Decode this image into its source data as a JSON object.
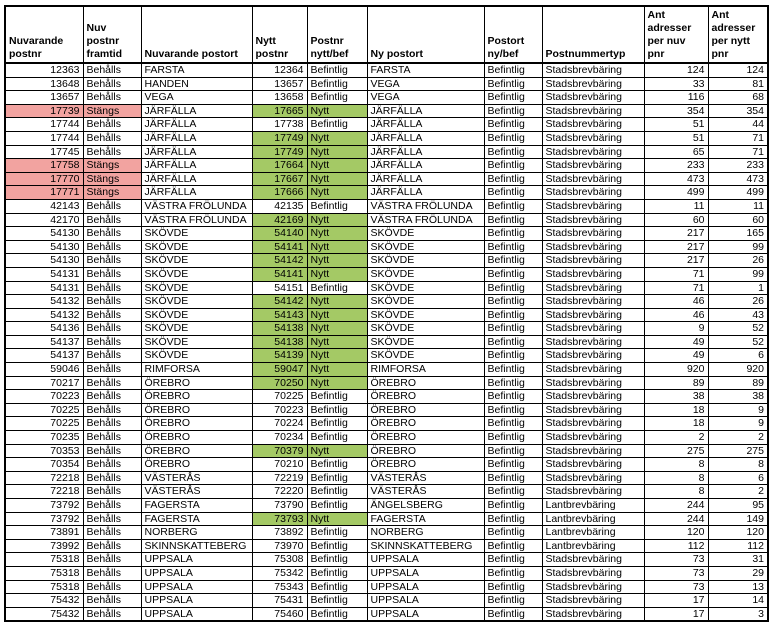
{
  "page": {
    "background": "#ffffff"
  },
  "table": {
    "columns": [
      {
        "key": "nuvarande-postnr",
        "label": "Nuvarande\npostnr",
        "align": "right"
      },
      {
        "key": "nuv-postnr-framtid",
        "label": "Nuv\npostnr\nframtid",
        "align": "left"
      },
      {
        "key": "nuvarande-postort",
        "label": "Nuvarande postort",
        "align": "left"
      },
      {
        "key": "nytt-postnr",
        "label": "Nytt\npostnr",
        "align": "right"
      },
      {
        "key": "postnr-nytt-bef",
        "label": "Postnr\nnytt/bef",
        "align": "left"
      },
      {
        "key": "ny-postort",
        "label": "Ny postort",
        "align": "left"
      },
      {
        "key": "postort-ny-bef",
        "label": "Postort\nny/bef",
        "align": "left"
      },
      {
        "key": "postnummertyp",
        "label": "Postnummertyp",
        "align": "left"
      },
      {
        "key": "ant-adresser-per-nuv-pnr",
        "label": "Ant\nadresser\nper nuv pnr",
        "align": "right"
      },
      {
        "key": "ant-adresser-per-nytt-pnr",
        "label": "Ant\nadresser\nper nytt pnr",
        "align": "right"
      }
    ],
    "rows": [
      [
        "12363",
        "Behålls",
        "FARSTA",
        "12364",
        "Befintlig",
        "FARSTA",
        "Befintlig",
        "Stadsbrevbäring",
        "124",
        "124"
      ],
      [
        "13648",
        "Behålls",
        "HANDEN",
        "13657",
        "Befintlig",
        "VEGA",
        "Befintlig",
        "Stadsbrevbäring",
        "33",
        "81"
      ],
      [
        "13657",
        "Behålls",
        "VEGA",
        "13658",
        "Befintlig",
        "VEGA",
        "Befintlig",
        "Stadsbrevbäring",
        "116",
        "68"
      ],
      [
        "17739",
        "Stängs",
        "JÄRFÄLLA",
        "17665",
        "Nytt",
        "JÄRFÄLLA",
        "Befintlig",
        "Stadsbrevbäring",
        "354",
        "354"
      ],
      [
        "17744",
        "Behålls",
        "JÄRFÄLLA",
        "17738",
        "Befintlig",
        "JÄRFÄLLA",
        "Befintlig",
        "Stadsbrevbäring",
        "51",
        "44"
      ],
      [
        "17744",
        "Behålls",
        "JÄRFÄLLA",
        "17749",
        "Nytt",
        "JÄRFÄLLA",
        "Befintlig",
        "Stadsbrevbäring",
        "51",
        "71"
      ],
      [
        "17745",
        "Behålls",
        "JÄRFÄLLA",
        "17749",
        "Nytt",
        "JÄRFÄLLA",
        "Befintlig",
        "Stadsbrevbäring",
        "65",
        "71"
      ],
      [
        "17758",
        "Stängs",
        "JÄRFÄLLA",
        "17664",
        "Nytt",
        "JÄRFÄLLA",
        "Befintlig",
        "Stadsbrevbäring",
        "233",
        "233"
      ],
      [
        "17770",
        "Stängs",
        "JÄRFÄLLA",
        "17667",
        "Nytt",
        "JÄRFÄLLA",
        "Befintlig",
        "Stadsbrevbäring",
        "473",
        "473"
      ],
      [
        "17771",
        "Stängs",
        "JÄRFÄLLA",
        "17666",
        "Nytt",
        "JÄRFÄLLA",
        "Befintlig",
        "Stadsbrevbäring",
        "499",
        "499"
      ],
      [
        "42143",
        "Behålls",
        "VÄSTRA FRÖLUNDA",
        "42135",
        "Befintlig",
        "VÄSTRA FRÖLUNDA",
        "Befintlig",
        "Stadsbrevbäring",
        "11",
        "11"
      ],
      [
        "42170",
        "Behålls",
        "VÄSTRA FRÖLUNDA",
        "42169",
        "Nytt",
        "VÄSTRA FRÖLUNDA",
        "Befintlig",
        "Stadsbrevbäring",
        "60",
        "60"
      ],
      [
        "54130",
        "Behålls",
        "SKÖVDE",
        "54140",
        "Nytt",
        "SKÖVDE",
        "Befintlig",
        "Stadsbrevbäring",
        "217",
        "165"
      ],
      [
        "54130",
        "Behålls",
        "SKÖVDE",
        "54141",
        "Nytt",
        "SKÖVDE",
        "Befintlig",
        "Stadsbrevbäring",
        "217",
        "99"
      ],
      [
        "54130",
        "Behålls",
        "SKÖVDE",
        "54142",
        "Nytt",
        "SKÖVDE",
        "Befintlig",
        "Stadsbrevbäring",
        "217",
        "26"
      ],
      [
        "54131",
        "Behålls",
        "SKÖVDE",
        "54141",
        "Nytt",
        "SKÖVDE",
        "Befintlig",
        "Stadsbrevbäring",
        "71",
        "99"
      ],
      [
        "54131",
        "Behålls",
        "SKÖVDE",
        "54151",
        "Befintlig",
        "SKÖVDE",
        "Befintlig",
        "Stadsbrevbäring",
        "71",
        "1"
      ],
      [
        "54132",
        "Behålls",
        "SKÖVDE",
        "54142",
        "Nytt",
        "SKÖVDE",
        "Befintlig",
        "Stadsbrevbäring",
        "46",
        "26"
      ],
      [
        "54132",
        "Behålls",
        "SKÖVDE",
        "54143",
        "Nytt",
        "SKÖVDE",
        "Befintlig",
        "Stadsbrevbäring",
        "46",
        "43"
      ],
      [
        "54136",
        "Behålls",
        "SKÖVDE",
        "54138",
        "Nytt",
        "SKÖVDE",
        "Befintlig",
        "Stadsbrevbäring",
        "9",
        "52"
      ],
      [
        "54137",
        "Behålls",
        "SKÖVDE",
        "54138",
        "Nytt",
        "SKÖVDE",
        "Befintlig",
        "Stadsbrevbäring",
        "49",
        "52"
      ],
      [
        "54137",
        "Behålls",
        "SKÖVDE",
        "54139",
        "Nytt",
        "SKÖVDE",
        "Befintlig",
        "Stadsbrevbäring",
        "49",
        "6"
      ],
      [
        "59046",
        "Behålls",
        "RIMFORSA",
        "59047",
        "Nytt",
        "RIMFORSA",
        "Befintlig",
        "Stadsbrevbäring",
        "920",
        "920"
      ],
      [
        "70217",
        "Behålls",
        "ÖREBRO",
        "70250",
        "Nytt",
        "ÖREBRO",
        "Befintlig",
        "Stadsbrevbäring",
        "89",
        "89"
      ],
      [
        "70223",
        "Behålls",
        "ÖREBRO",
        "70225",
        "Befintlig",
        "ÖREBRO",
        "Befintlig",
        "Stadsbrevbäring",
        "38",
        "38"
      ],
      [
        "70225",
        "Behålls",
        "ÖREBRO",
        "70223",
        "Befintlig",
        "ÖREBRO",
        "Befintlig",
        "Stadsbrevbäring",
        "18",
        "9"
      ],
      [
        "70225",
        "Behålls",
        "ÖREBRO",
        "70224",
        "Befintlig",
        "ÖREBRO",
        "Befintlig",
        "Stadsbrevbäring",
        "18",
        "9"
      ],
      [
        "70235",
        "Behålls",
        "ÖREBRO",
        "70234",
        "Befintlig",
        "ÖREBRO",
        "Befintlig",
        "Stadsbrevbäring",
        "2",
        "2"
      ],
      [
        "70353",
        "Behålls",
        "ÖREBRO",
        "70379",
        "Nytt",
        "ÖREBRO",
        "Befintlig",
        "Stadsbrevbäring",
        "275",
        "275"
      ],
      [
        "70354",
        "Behålls",
        "ÖREBRO",
        "70210",
        "Befintlig",
        "ÖREBRO",
        "Befintlig",
        "Stadsbrevbäring",
        "8",
        "8"
      ],
      [
        "72218",
        "Behålls",
        "VÄSTERÅS",
        "72219",
        "Befintlig",
        "VÄSTERÅS",
        "Befintlig",
        "Stadsbrevbäring",
        "8",
        "6"
      ],
      [
        "72218",
        "Behålls",
        "VÄSTERÅS",
        "72220",
        "Befintlig",
        "VÄSTERÅS",
        "Befintlig",
        "Stadsbrevbäring",
        "8",
        "2"
      ],
      [
        "73792",
        "Behålls",
        "FAGERSTA",
        "73790",
        "Befintlig",
        "ÄNGELSBERG",
        "Befintlig",
        "Lantbrevbäring",
        "244",
        "95"
      ],
      [
        "73792",
        "Behålls",
        "FAGERSTA",
        "73793",
        "Nytt",
        "FAGERSTA",
        "Befintlig",
        "Lantbrevbäring",
        "244",
        "149"
      ],
      [
        "73891",
        "Behålls",
        "NORBERG",
        "73892",
        "Befintlig",
        "NORBERG",
        "Befintlig",
        "Lantbrevbäring",
        "120",
        "120"
      ],
      [
        "73992",
        "Behålls",
        "SKINNSKATTEBERG",
        "73970",
        "Befintlig",
        "SKINNSKATTEBERG",
        "Befintlig",
        "Lantbrevbäring",
        "112",
        "112"
      ],
      [
        "75318",
        "Behålls",
        "UPPSALA",
        "75308",
        "Befintlig",
        "UPPSALA",
        "Befintlig",
        "Stadsbrevbäring",
        "73",
        "31"
      ],
      [
        "75318",
        "Behålls",
        "UPPSALA",
        "75342",
        "Befintlig",
        "UPPSALA",
        "Befintlig",
        "Stadsbrevbäring",
        "73",
        "29"
      ],
      [
        "75318",
        "Behålls",
        "UPPSALA",
        "75343",
        "Befintlig",
        "UPPSALA",
        "Befintlig",
        "Stadsbrevbäring",
        "73",
        "13"
      ],
      [
        "75432",
        "Behålls",
        "UPPSALA",
        "75431",
        "Befintlig",
        "UPPSALA",
        "Befintlig",
        "Stadsbrevbäring",
        "17",
        "14"
      ],
      [
        "75432",
        "Behålls",
        "UPPSALA",
        "75460",
        "Befintlig",
        "UPPSALA",
        "Befintlig",
        "Stadsbrevbäring",
        "17",
        "3"
      ]
    ],
    "highlights": {
      "closed_value": "Stängs",
      "new_value": "Nytt",
      "closed_fill": "#f2a3a0",
      "new_fill": "#a4c965",
      "border_color": "#000000",
      "text_color": "#000000"
    }
  }
}
